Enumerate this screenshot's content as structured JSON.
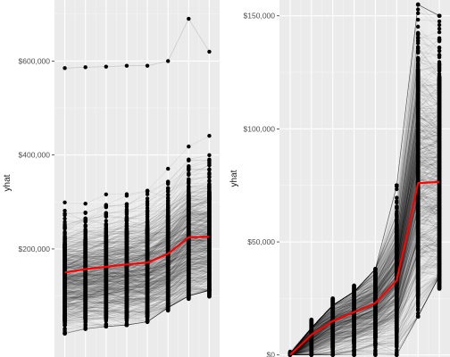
{
  "chart_data": [
    {
      "type": "line",
      "description_of_marks": "many grey individual trajectories with black points, red mean line",
      "ylabel": "yhat",
      "xlabel": "",
      "ylim": [
        0,
        700000
      ],
      "xlim": [
        0.5,
        8.5
      ],
      "x": [
        1,
        2,
        3,
        4,
        5,
        6,
        7,
        8
      ],
      "y_ticks": [
        200000,
        400000,
        600000
      ],
      "y_tick_labels": [
        "$200,000",
        "$400,000",
        "$600,000"
      ],
      "grid": true,
      "mean_line": {
        "color": "#ff0000",
        "values": [
          150000,
          157000,
          162000,
          167000,
          171000,
          190000,
          225000,
          226000
        ]
      },
      "point_max": [
        585000,
        587000,
        588000,
        590000,
        590000,
        600000,
        690000,
        620000
      ],
      "point_min": [
        20000,
        30000,
        35000,
        38000,
        45000,
        75000,
        100000,
        112000
      ],
      "dense_center": [
        130000,
        135000,
        140000,
        145000,
        150000,
        170000,
        205000,
        210000
      ],
      "dense_spread": [
        50000,
        52000,
        54000,
        56000,
        58000,
        62000,
        68000,
        68000
      ]
    },
    {
      "type": "line",
      "description_of_marks": "many grey individual trajectories with black points, red mean line",
      "ylabel": "yhat",
      "xlabel": "",
      "ylim": [
        0,
        150000
      ],
      "xlim": [
        0.5,
        8.5
      ],
      "x": [
        1,
        2,
        3,
        4,
        5,
        6,
        7,
        8
      ],
      "y_ticks": [
        0,
        50000,
        100000,
        150000
      ],
      "y_tick_labels": [
        "$0",
        "$50,000",
        "$100,000",
        "$150,000"
      ],
      "grid": true,
      "mean_line": {
        "color": "#ff0000",
        "values": [
          0,
          9000,
          15000,
          19000,
          23000,
          33000,
          76000,
          76500
        ]
      },
      "point_max": [
        1500,
        12000,
        22000,
        28000,
        38000,
        75000,
        155000,
        150000
      ],
      "point_min": [
        0,
        0,
        0,
        0,
        0,
        0,
        17000,
        35000
      ],
      "dense_center": [
        200,
        8000,
        14000,
        18000,
        22000,
        33000,
        76000,
        76000
      ],
      "dense_spread": [
        200,
        5000,
        7000,
        8000,
        9000,
        14000,
        30000,
        28000
      ]
    }
  ]
}
